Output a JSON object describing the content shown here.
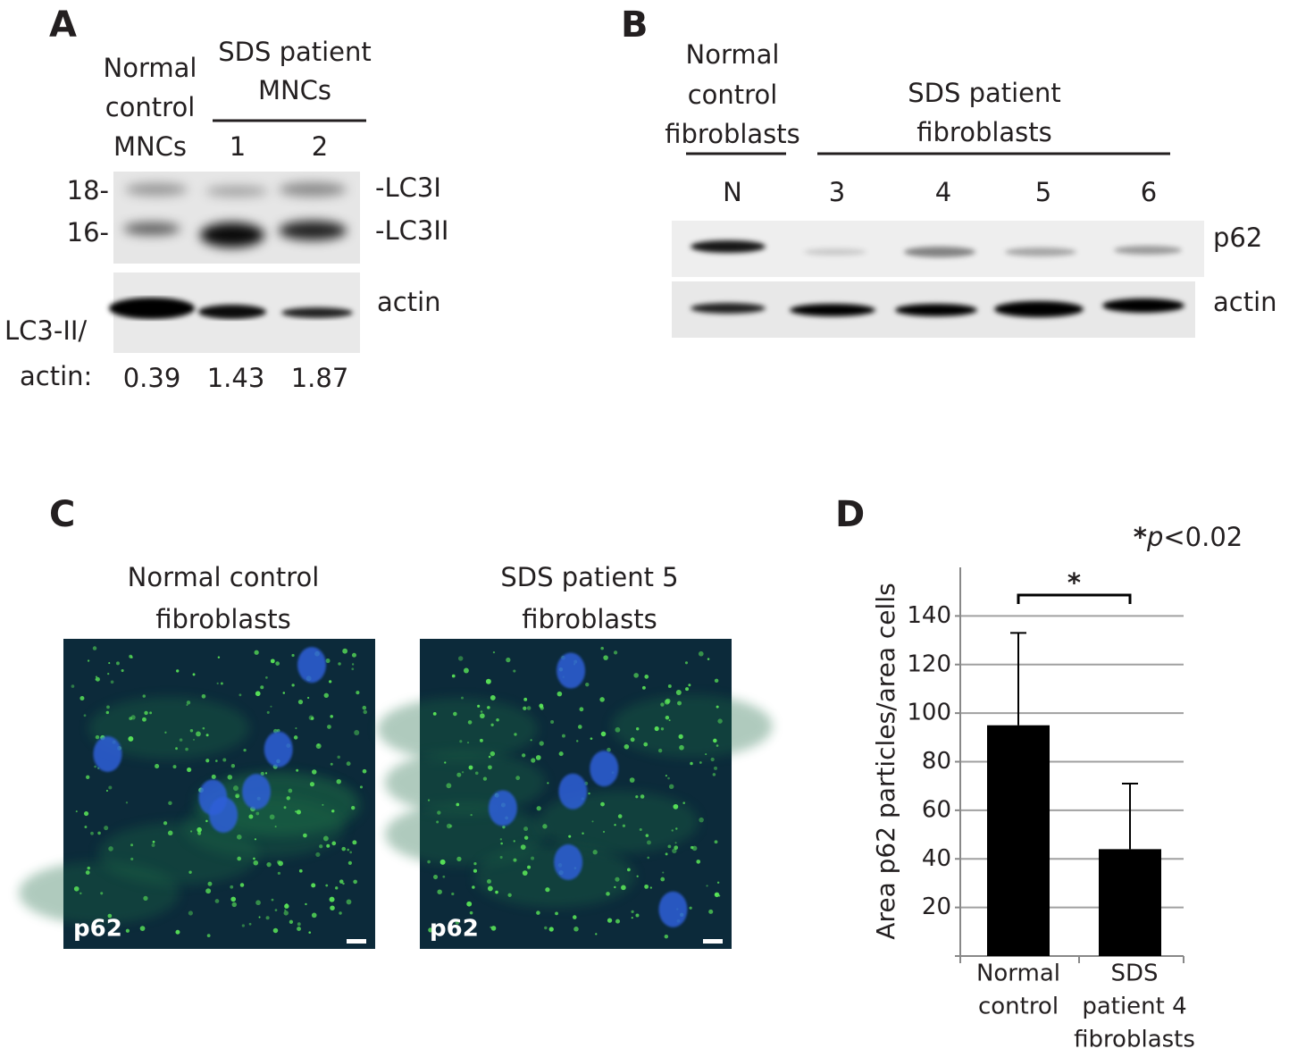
{
  "panel_a": {
    "label": "A",
    "normal_header": [
      "Normal",
      "control",
      "MNCs"
    ],
    "patient_header": [
      "SDS patient",
      "MNCs"
    ],
    "lanes": [
      "1",
      "2"
    ],
    "markers": [
      "18-",
      "16-"
    ],
    "bands": [
      "-LC3I",
      "-LC3II"
    ],
    "loading": "actin",
    "ratio_label": [
      "LC3-II/",
      "actin:"
    ],
    "ratios": [
      0.39,
      1.43,
      1.87
    ]
  },
  "panel_b": {
    "label": "B",
    "normal_header": [
      "Normal",
      "control",
      "fibroblasts"
    ],
    "patient_header": [
      "SDS patient",
      "fibroblasts"
    ],
    "lanes": [
      "N",
      "3",
      "4",
      "5",
      "6"
    ],
    "bands": [
      "p62",
      "actin"
    ]
  },
  "panel_c": {
    "label": "C",
    "images": [
      {
        "title": [
          "Normal control",
          "fibroblasts"
        ],
        "stain": "p62"
      },
      {
        "title": [
          "SDS patient 5",
          "fibroblasts"
        ],
        "stain": "p62"
      }
    ]
  },
  "chart_data": {
    "type": "bar",
    "label": "D",
    "significance": {
      "star": "*",
      "p": "p",
      "threshold": "<0.02"
    },
    "bracket_star": "*",
    "y_label": "Area p62 particles/area cells",
    "categories": [
      [
        "Normal",
        "control"
      ],
      [
        "SDS",
        "patient 4",
        "fibroblasts"
      ]
    ],
    "values": [
      95,
      44
    ],
    "errors": [
      38,
      27
    ],
    "color": "#000000",
    "ylim": [
      0,
      160
    ],
    "yticks": [
      20,
      40,
      60,
      80,
      100,
      120,
      140
    ],
    "grid": true
  }
}
